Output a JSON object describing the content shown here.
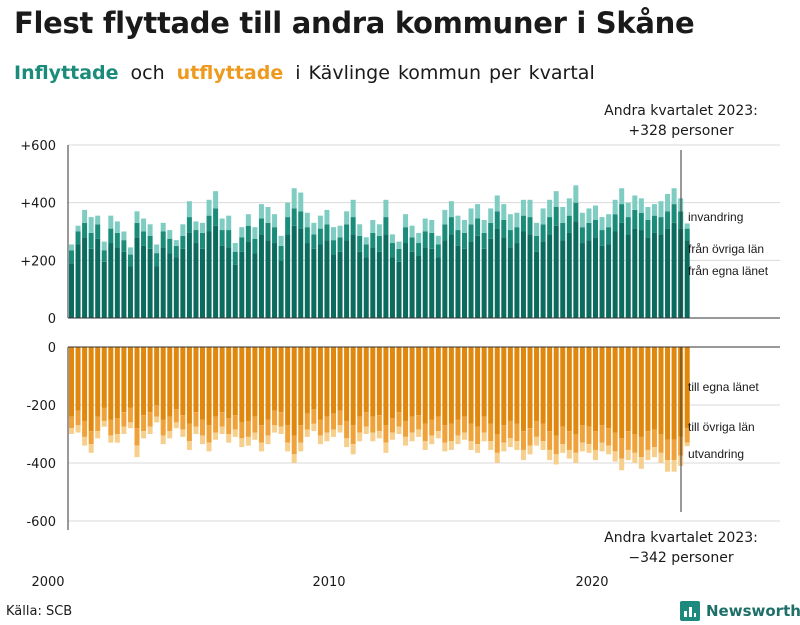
{
  "title": "Flest flyttade till andra kommuner i Skåne",
  "subtitle": {
    "in_word": "Inflyttade",
    "and_word": "och",
    "out_word": "utflyttade",
    "rest": "i Kävlinge kommun per kvartal"
  },
  "source": "Källa: SCB",
  "brand": "Newsworthy",
  "colors": {
    "in_dark": "#0b6b5e",
    "in_mid": "#1b8b7a",
    "in_light": "#7fcdc2",
    "out_dark": "#e0870d",
    "out_mid": "#f0a23a",
    "out_light": "#f7cf8d"
  },
  "annotations": {
    "top_line1": "Andra kvartalet 2023:",
    "top_line2": "+328 personer",
    "bottom_line1": "Andra kvartalet 2023:",
    "bottom_line2": "−342 personer"
  },
  "chart_data": {
    "type": "bar",
    "stacked": true,
    "x_start": "2000 Q1",
    "x_end": "2023 Q2",
    "x_ticks": [
      "2000",
      "2010",
      "2020"
    ],
    "top_panel": {
      "yticks": [
        "+600",
        "+400",
        "+200",
        "0"
      ],
      "ylim": [
        0,
        600
      ],
      "series": [
        {
          "name": "från egna länet",
          "values": [
            190,
            255,
            280,
            240,
            275,
            195,
            260,
            245,
            230,
            180,
            280,
            250,
            240,
            180,
            245,
            225,
            210,
            240,
            295,
            260,
            240,
            300,
            320,
            250,
            245,
            185,
            230,
            265,
            225,
            290,
            270,
            260,
            200,
            290,
            320,
            310,
            260,
            240,
            255,
            270,
            220,
            230,
            270,
            290,
            230,
            210,
            245,
            230,
            290,
            210,
            195,
            260,
            230,
            215,
            245,
            240,
            210,
            270,
            290,
            250,
            240,
            265,
            285,
            240,
            275,
            310,
            280,
            245,
            260,
            300,
            290,
            230,
            265,
            290,
            320,
            270,
            295,
            335,
            260,
            270,
            280,
            250,
            255,
            300,
            330,
            290,
            310,
            305,
            280,
            295,
            290,
            310,
            330,
            310,
            270
          ]
        },
        {
          "name": "från övriga län",
          "values": [
            45,
            45,
            50,
            55,
            50,
            40,
            50,
            50,
            40,
            40,
            50,
            50,
            45,
            45,
            55,
            50,
            40,
            45,
            55,
            45,
            55,
            55,
            60,
            55,
            60,
            45,
            50,
            55,
            50,
            55,
            60,
            55,
            50,
            60,
            60,
            60,
            55,
            50,
            55,
            55,
            50,
            50,
            55,
            60,
            55,
            45,
            50,
            55,
            60,
            50,
            45,
            55,
            50,
            45,
            55,
            55,
            45,
            55,
            60,
            55,
            55,
            60,
            60,
            55,
            55,
            60,
            60,
            60,
            55,
            55,
            60,
            55,
            60,
            60,
            65,
            60,
            60,
            65,
            55,
            60,
            60,
            55,
            60,
            60,
            65,
            60,
            65,
            60,
            60,
            60,
            60,
            60,
            65,
            60,
            40
          ]
        },
        {
          "name": "invandring",
          "values": [
            20,
            20,
            45,
            55,
            30,
            30,
            45,
            40,
            30,
            25,
            40,
            45,
            40,
            30,
            30,
            30,
            20,
            40,
            55,
            30,
            35,
            55,
            60,
            40,
            50,
            30,
            35,
            40,
            40,
            50,
            55,
            45,
            35,
            50,
            70,
            65,
            50,
            40,
            45,
            50,
            45,
            40,
            45,
            60,
            40,
            25,
            45,
            40,
            60,
            30,
            25,
            45,
            40,
            35,
            45,
            45,
            30,
            50,
            55,
            50,
            45,
            55,
            50,
            45,
            50,
            55,
            55,
            55,
            50,
            55,
            60,
            45,
            55,
            60,
            55,
            55,
            60,
            60,
            50,
            50,
            50,
            45,
            45,
            50,
            55,
            50,
            50,
            50,
            45,
            40,
            55,
            60,
            55,
            45,
            18
          ]
        }
      ]
    },
    "bottom_panel": {
      "yticks": [
        "0",
        "-200",
        "-400",
        "-600"
      ],
      "ylim": [
        -600,
        0
      ],
      "series": [
        {
          "name": "till egna länet",
          "values": [
            240,
            220,
            255,
            290,
            240,
            210,
            250,
            245,
            225,
            210,
            280,
            235,
            225,
            200,
            250,
            240,
            215,
            235,
            265,
            225,
            250,
            270,
            240,
            225,
            245,
            235,
            260,
            255,
            240,
            270,
            250,
            220,
            225,
            270,
            305,
            270,
            230,
            215,
            250,
            240,
            230,
            220,
            255,
            270,
            240,
            225,
            240,
            235,
            270,
            245,
            225,
            255,
            240,
            235,
            265,
            250,
            240,
            270,
            265,
            250,
            240,
            265,
            275,
            240,
            265,
            300,
            270,
            255,
            265,
            290,
            280,
            255,
            265,
            290,
            305,
            275,
            290,
            300,
            270,
            275,
            290,
            270,
            280,
            295,
            315,
            290,
            300,
            310,
            290,
            285,
            300,
            320,
            320,
            310,
            280
          ]
        },
        {
          "name": "till övriga län",
          "values": [
            40,
            50,
            55,
            45,
            50,
            45,
            55,
            55,
            50,
            50,
            60,
            55,
            50,
            40,
            55,
            50,
            45,
            50,
            60,
            50,
            55,
            60,
            55,
            50,
            55,
            50,
            55,
            55,
            55,
            60,
            55,
            50,
            50,
            60,
            65,
            60,
            55,
            50,
            55,
            55,
            55,
            50,
            60,
            65,
            55,
            50,
            55,
            55,
            60,
            50,
            50,
            55,
            55,
            50,
            60,
            55,
            50,
            60,
            60,
            55,
            55,
            60,
            60,
            55,
            60,
            65,
            60,
            60,
            60,
            65,
            60,
            55,
            60,
            65,
            65,
            60,
            65,
            65,
            60,
            60,
            65,
            60,
            60,
            65,
            70,
            65,
            65,
            70,
            65,
            60,
            65,
            70,
            70,
            65,
            50
          ]
        },
        {
          "name": "utvandring",
          "values": [
            20,
            25,
            30,
            30,
            25,
            20,
            25,
            30,
            25,
            20,
            40,
            25,
            25,
            20,
            30,
            25,
            20,
            25,
            30,
            25,
            30,
            30,
            25,
            25,
            30,
            25,
            30,
            30,
            25,
            30,
            30,
            25,
            25,
            30,
            30,
            30,
            25,
            25,
            30,
            30,
            25,
            25,
            30,
            35,
            30,
            25,
            30,
            25,
            35,
            25,
            25,
            30,
            30,
            25,
            30,
            30,
            25,
            30,
            30,
            30,
            25,
            30,
            30,
            30,
            30,
            35,
            30,
            30,
            30,
            35,
            30,
            30,
            30,
            35,
            35,
            30,
            30,
            35,
            30,
            30,
            35,
            30,
            30,
            35,
            40,
            35,
            35,
            40,
            35,
            35,
            35,
            40,
            40,
            35,
            12
          ]
        }
      ]
    },
    "legend_labels": {
      "top": [
        "invandring",
        "från övriga län",
        "från egna länet"
      ],
      "bottom": [
        "till egna länet",
        "till övriga län",
        "utvandring"
      ]
    }
  }
}
